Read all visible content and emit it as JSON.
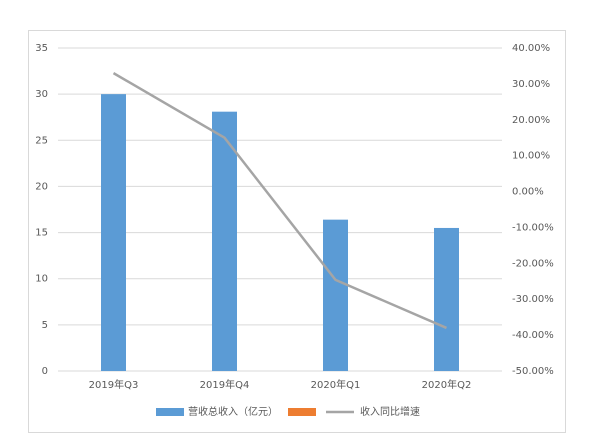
{
  "chart_data": {
    "type": "bar-line",
    "categories": [
      "2019年Q3",
      "2019年Q4",
      "2020年Q1",
      "2020年Q2"
    ],
    "series": [
      {
        "name": "营收总收入（亿元）",
        "type": "bar",
        "color": "#5b9bd5",
        "values": [
          30.0,
          28.1,
          16.4,
          15.5
        ]
      },
      {
        "type": "bar",
        "color": "#ed7d31",
        "values": [
          null,
          null,
          null,
          null
        ]
      },
      {
        "name": "收入同比增速",
        "type": "line",
        "axis": "y2",
        "color": "#a5a5a5",
        "values": [
          33,
          15,
          -24.6,
          -38
        ]
      }
    ],
    "ylim": [
      0,
      35
    ],
    "yticks": [
      0,
      5,
      10,
      15,
      20,
      25,
      30,
      35
    ],
    "y2lim": [
      -50,
      40
    ],
    "y2ticks": [
      {
        "value": -50,
        "label": "-50.00%"
      },
      {
        "value": -40,
        "label": "-40.00%"
      },
      {
        "value": -30,
        "label": "-30.00%"
      },
      {
        "value": -20,
        "label": "-20.00%"
      },
      {
        "value": -10,
        "label": "-10.00%"
      },
      {
        "value": 0,
        "label": "0.00%"
      },
      {
        "value": 10,
        "label": "10.00%"
      },
      {
        "value": 20,
        "label": "20.00%"
      },
      {
        "value": 30,
        "label": "30.00%"
      },
      {
        "value": 40,
        "label": "40.00%"
      }
    ],
    "grid": true,
    "legend": "bottom"
  }
}
